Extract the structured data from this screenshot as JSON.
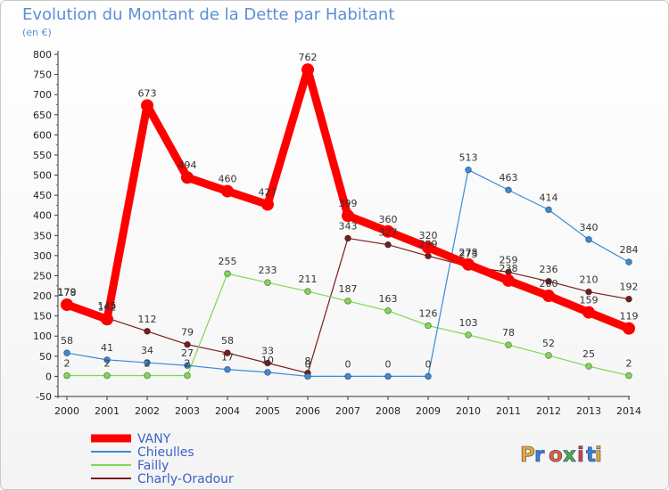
{
  "chart_data": {
    "type": "line",
    "title": "Evolution du Montant de la Dette par Habitant",
    "subtitle": "(en €)",
    "x": [
      "2000",
      "2001",
      "2002",
      "2003",
      "2004",
      "2005",
      "2006",
      "2007",
      "2008",
      "2009",
      "2010",
      "2011",
      "2012",
      "2013",
      "2014"
    ],
    "ylim": [
      -50,
      800
    ],
    "yticks": [
      -50,
      0,
      50,
      100,
      150,
      200,
      250,
      300,
      350,
      400,
      450,
      500,
      550,
      600,
      650,
      700,
      750,
      800
    ],
    "grid": false,
    "legend_position": "bottom-left",
    "series": [
      {
        "name": "VANY",
        "color": "#ff0000",
        "values": [
          178,
          142,
          673,
          494,
          460,
          427,
          762,
          399,
          360,
          320,
          278,
          238,
          200,
          159,
          119
        ]
      },
      {
        "name": "Chieulles",
        "color": "#3b8ad6",
        "values": [
          58,
          41,
          34,
          27,
          17,
          10,
          0,
          0,
          0,
          0,
          513,
          463,
          414,
          340,
          284
        ]
      },
      {
        "name": "Failly",
        "color": "#7ed957",
        "values": [
          2,
          2,
          2,
          2,
          255,
          233,
          211,
          187,
          163,
          126,
          103,
          78,
          52,
          25,
          2
        ]
      },
      {
        "name": "Charly-Oradour",
        "color": "#7a1c1c",
        "values": [
          179,
          145,
          112,
          79,
          58,
          33,
          8,
          343,
          327,
          299,
          273,
          259,
          236,
          210,
          192
        ]
      }
    ]
  },
  "brand": {
    "logo_text": "Proxiti"
  }
}
